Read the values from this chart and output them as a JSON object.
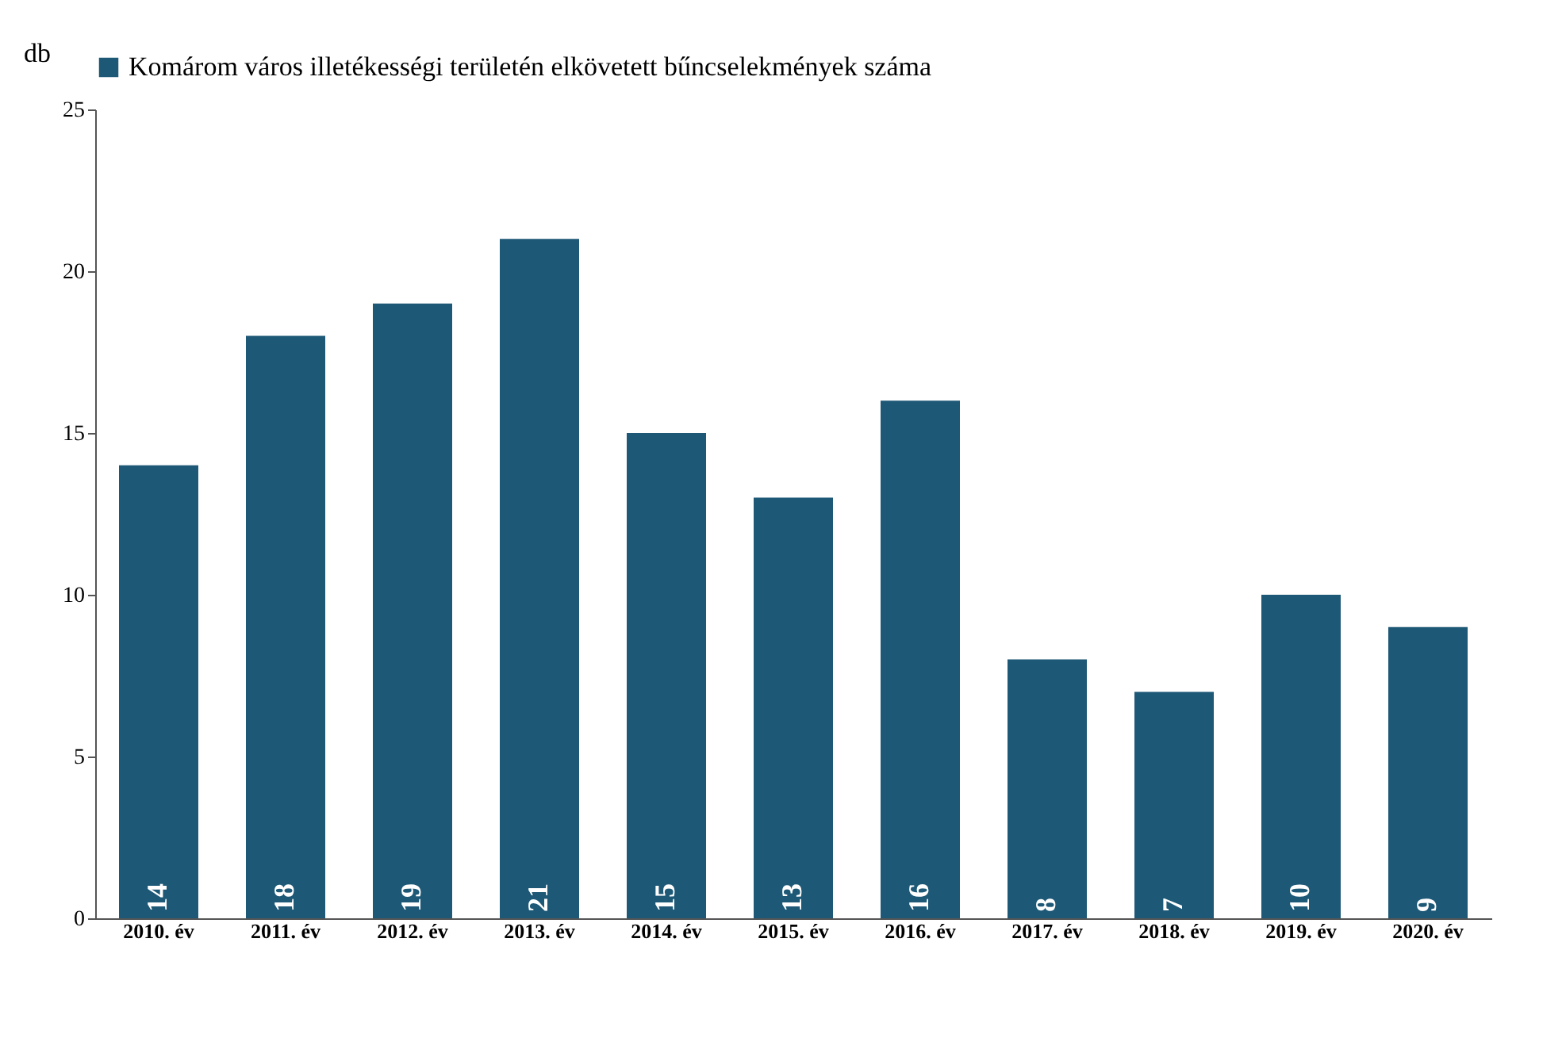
{
  "chart_data": {
    "type": "bar",
    "ylabel": "db",
    "categories": [
      "2010. év",
      "2011. év",
      "2012. év",
      "2013. év",
      "2014. év",
      "2015. év",
      "2016. év",
      "2017. év",
      "2018. év",
      "2019. év",
      "2020. év"
    ],
    "series": [
      {
        "name": "Komárom város illetékességi területén elkövetett bűncselekmények száma",
        "color": "#1d5876",
        "values": [
          14,
          18,
          19,
          21,
          15,
          13,
          16,
          8,
          7,
          10,
          9
        ]
      }
    ],
    "ylim": [
      0,
      25
    ],
    "yticks": [
      0,
      5,
      10,
      15,
      20,
      25
    ],
    "grid": false,
    "legend": "top",
    "data_labels": true
  }
}
